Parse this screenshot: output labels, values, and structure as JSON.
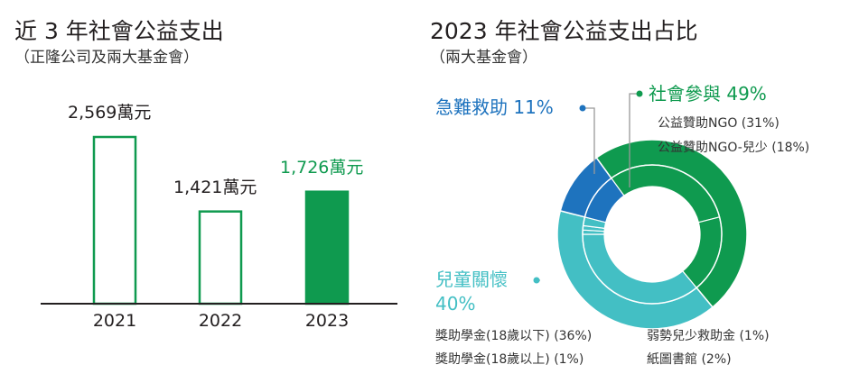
{
  "chart_data": [
    {
      "type": "bar",
      "title": "近 3 年社會公益支出",
      "subtitle": "（正隆公司及兩大基金會）",
      "categories": [
        "2021",
        "2022",
        "2023"
      ],
      "values": [
        2569,
        1421,
        1726
      ],
      "data_labels": [
        "2,569萬元",
        "1,421萬元",
        "1,726萬元"
      ],
      "highlight_index": 2,
      "ylim": [
        0,
        2569
      ],
      "colors": {
        "outline": "#0f9a4f",
        "highlight": "#0f9a4f",
        "axis": "#231f20"
      }
    },
    {
      "type": "pie",
      "title": "2023 年社會公益支出占比",
      "subtitle": "（兩大基金會）",
      "categories": [
        {
          "name": "社會參與",
          "label": "社會參與 49%",
          "value": 49,
          "color": "#0f9a4f",
          "subcategories": [
            {
              "name": "公益贊助NGO",
              "label": "公益贊助NGO (31%)",
              "value": 31
            },
            {
              "name": "公益贊助NGO-兒少",
              "label": "公益贊助NGO-兒少 (18%)",
              "value": 18
            }
          ]
        },
        {
          "name": "兒童關懷",
          "label_line1": "兒童關懷",
          "label_line2": "40%",
          "value": 40,
          "color": "#43bfc4",
          "subcategories": [
            {
              "name": "獎助學金(18歲以下)",
              "label": "獎助學金(18歲以下) (36%)",
              "value": 36
            },
            {
              "name": "獎助學金(18歲以上)",
              "label": "獎助學金(18歲以上) (1%)",
              "value": 1
            },
            {
              "name": "弱勢兒少救助金",
              "label": "弱勢兒少救助金 (1%)",
              "value": 1
            },
            {
              "name": "紙圖書館",
              "label": "紙圖書館 (2%)",
              "value": 2
            }
          ]
        },
        {
          "name": "急難救助",
          "label": "急難救助 11%",
          "value": 11,
          "color": "#1e73be",
          "subcategories": [
            {
              "name": "急難救助",
              "value": 11
            }
          ]
        }
      ]
    }
  ]
}
